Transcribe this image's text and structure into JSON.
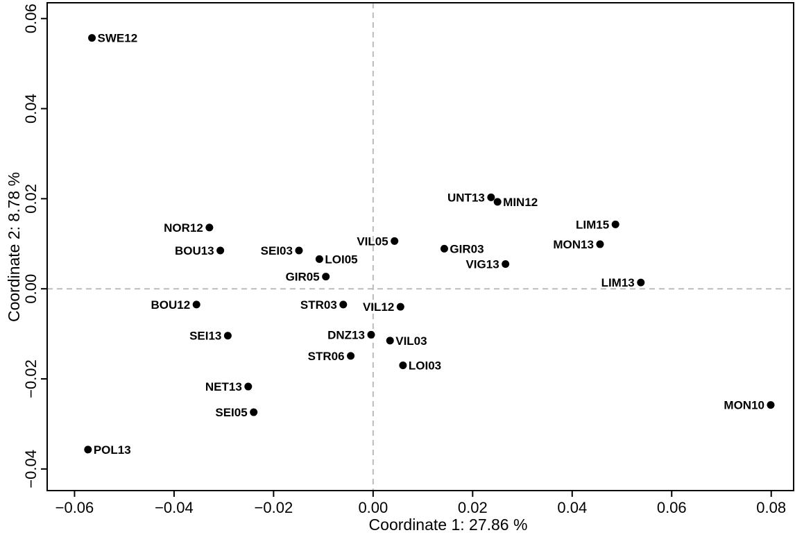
{
  "chart_data": {
    "type": "scatter",
    "xlabel": "Coordinate 1: 27.86 %",
    "ylabel": "Coordinate 2: 8.78 %",
    "xlim": [
      -0.0655,
      0.0845
    ],
    "ylim": [
      -0.0448,
      0.0635
    ],
    "xticks": [
      -0.06,
      -0.04,
      -0.02,
      0.0,
      0.02,
      0.04,
      0.06,
      0.08
    ],
    "xtick_labels": [
      "−0.06",
      "−0.04",
      "−0.02",
      "0.00",
      "0.02",
      "0.04",
      "0.06",
      "0.08"
    ],
    "yticks": [
      -0.04,
      -0.02,
      0.0,
      0.02,
      0.04,
      0.06
    ],
    "ytick_labels": [
      "−0.04",
      "−0.02",
      "0.00",
      "0.02",
      "0.04",
      "0.06"
    ],
    "reference_lines": {
      "x": 0,
      "y": 0,
      "style": "dashed",
      "color": "#bbbbbb"
    },
    "marker_color": "#000000",
    "points": [
      {
        "label": "SWE12",
        "x": -0.0565,
        "y": 0.0557,
        "side": "right"
      },
      {
        "label": "NOR12",
        "x": -0.0329,
        "y": 0.0136,
        "side": "left"
      },
      {
        "label": "BOU13",
        "x": -0.0307,
        "y": 0.0085,
        "side": "left"
      },
      {
        "label": "SEI03",
        "x": -0.0149,
        "y": 0.0085,
        "side": "left"
      },
      {
        "label": "LOI05",
        "x": -0.0108,
        "y": 0.0066,
        "side": "right"
      },
      {
        "label": "GIR05",
        "x": -0.0095,
        "y": 0.0027,
        "side": "left"
      },
      {
        "label": "VIL05",
        "x": 0.0043,
        "y": 0.0106,
        "side": "left"
      },
      {
        "label": "UNT13",
        "x": 0.0237,
        "y": 0.0203,
        "side": "left"
      },
      {
        "label": "MIN12",
        "x": 0.025,
        "y": 0.0193,
        "side": "right"
      },
      {
        "label": "GIR03",
        "x": 0.0143,
        "y": 0.0089,
        "side": "right"
      },
      {
        "label": "VIG13",
        "x": 0.0266,
        "y": 0.0055,
        "side": "left"
      },
      {
        "label": "LIM15",
        "x": 0.0487,
        "y": 0.0143,
        "side": "left"
      },
      {
        "label": "MON13",
        "x": 0.0456,
        "y": 0.0099,
        "side": "left"
      },
      {
        "label": "LIM13",
        "x": 0.0538,
        "y": 0.0014,
        "side": "left"
      },
      {
        "label": "BOU12",
        "x": -0.0355,
        "y": -0.0035,
        "side": "left"
      },
      {
        "label": "STR03",
        "x": -0.006,
        "y": -0.0035,
        "side": "left"
      },
      {
        "label": "VIL12",
        "x": 0.0055,
        "y": -0.004,
        "side": "left"
      },
      {
        "label": "SEI13",
        "x": -0.0292,
        "y": -0.0104,
        "side": "left"
      },
      {
        "label": "DNZ13",
        "x": -0.0004,
        "y": -0.0102,
        "side": "left"
      },
      {
        "label": "VIL03",
        "x": 0.0034,
        "y": -0.0115,
        "side": "right"
      },
      {
        "label": "STR06",
        "x": -0.0045,
        "y": -0.0149,
        "side": "left"
      },
      {
        "label": "LOI03",
        "x": 0.006,
        "y": -0.017,
        "side": "right"
      },
      {
        "label": "NET13",
        "x": -0.0251,
        "y": -0.0217,
        "side": "left"
      },
      {
        "label": "SEI05",
        "x": -0.024,
        "y": -0.0274,
        "side": "left"
      },
      {
        "label": "POL13",
        "x": -0.0573,
        "y": -0.0357,
        "side": "right"
      },
      {
        "label": "MON10",
        "x": 0.0799,
        "y": -0.0258,
        "side": "left"
      }
    ]
  }
}
